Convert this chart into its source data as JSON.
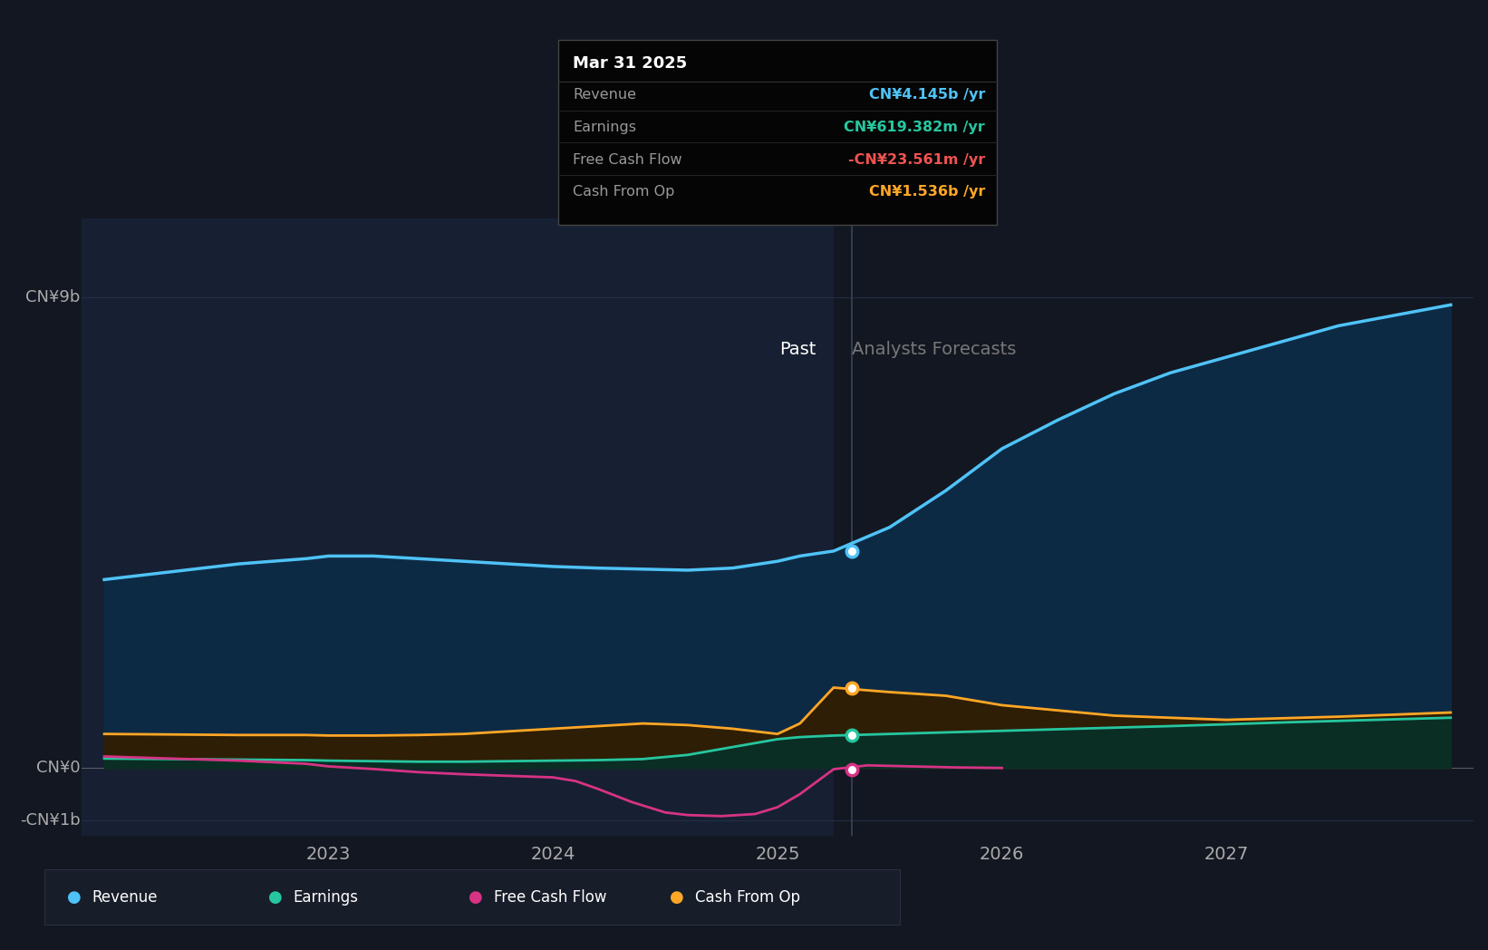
{
  "bg_color": "#131722",
  "plot_bg_color": "#131722",
  "tooltip_title": "Mar 31 2025",
  "tooltip_items": [
    {
      "label": "Revenue",
      "value": "CN¥4.145b /yr",
      "color": "#4fc3f7"
    },
    {
      "label": "Earnings",
      "value": "CN¥619.382m /yr",
      "color": "#26c6a0"
    },
    {
      "label": "Free Cash Flow",
      "value": "-CN¥23.561m /yr",
      "color": "#ef5350"
    },
    {
      "label": "Cash From Op",
      "value": "CN¥1.536b /yr",
      "color": "#ffa726"
    }
  ],
  "y_label_top": "CN¥9b",
  "y_label_zero": "CN¥0",
  "y_label_neg": "-CN¥1b",
  "past_label": "Past",
  "forecast_label": "Analysts Forecasts",
  "legend": [
    {
      "label": "Revenue",
      "color": "#4fc3f7"
    },
    {
      "label": "Earnings",
      "color": "#26c6a0"
    },
    {
      "label": "Free Cash Flow",
      "color": "#d63384"
    },
    {
      "label": "Cash From Op",
      "color": "#ffa726"
    }
  ],
  "divider_x": 2025.25,
  "highlight_x": 2025.33,
  "ylim": [
    -1300000000.0,
    10500000000.0
  ],
  "xlim": [
    2021.9,
    2028.1
  ],
  "revenue": {
    "x": [
      2022.0,
      2022.3,
      2022.6,
      2022.9,
      2023.0,
      2023.2,
      2023.4,
      2023.6,
      2023.8,
      2024.0,
      2024.2,
      2024.4,
      2024.6,
      2024.8,
      2025.0,
      2025.1,
      2025.25,
      2025.5,
      2025.75,
      2026.0,
      2026.25,
      2026.5,
      2026.75,
      2027.0,
      2027.25,
      2027.5,
      2027.75,
      2028.0
    ],
    "y": [
      3600000000.0,
      3750000000.0,
      3900000000.0,
      4000000000.0,
      4050000000.0,
      4050000000.0,
      4000000000.0,
      3950000000.0,
      3900000000.0,
      3850000000.0,
      3820000000.0,
      3800000000.0,
      3780000000.0,
      3820000000.0,
      3950000000.0,
      4050000000.0,
      4145000000.0,
      4600000000.0,
      5300000000.0,
      6100000000.0,
      6650000000.0,
      7150000000.0,
      7550000000.0,
      7850000000.0,
      8150000000.0,
      8450000000.0,
      8650000000.0,
      8850000000.0
    ],
    "color": "#4fc3f7",
    "fill_color": "#0d2a45",
    "linewidth": 2.5
  },
  "earnings": {
    "x": [
      2022.0,
      2022.3,
      2022.6,
      2022.9,
      2023.0,
      2023.2,
      2023.4,
      2023.6,
      2023.8,
      2024.0,
      2024.2,
      2024.4,
      2024.6,
      2024.8,
      2025.0,
      2025.1,
      2025.25,
      2025.5,
      2025.75,
      2026.0,
      2026.25,
      2026.5,
      2026.75,
      2027.0,
      2027.25,
      2027.5,
      2027.75,
      2028.0
    ],
    "y": [
      180000000.0,
      170000000.0,
      160000000.0,
      150000000.0,
      140000000.0,
      130000000.0,
      120000000.0,
      120000000.0,
      130000000.0,
      140000000.0,
      150000000.0,
      170000000.0,
      250000000.0,
      400000000.0,
      550000000.0,
      590000000.0,
      619382000.0,
      650000000.0,
      680000000.0,
      710000000.0,
      740000000.0,
      770000000.0,
      800000000.0,
      835000000.0,
      870000000.0,
      900000000.0,
      930000000.0,
      960000000.0
    ],
    "color": "#26c6a0",
    "fill_color": "#0a2e24",
    "linewidth": 2.0
  },
  "fcf": {
    "x": [
      2022.0,
      2022.3,
      2022.6,
      2022.9,
      2023.0,
      2023.2,
      2023.4,
      2023.6,
      2023.8,
      2024.0,
      2024.1,
      2024.2,
      2024.35,
      2024.5,
      2024.6,
      2024.75,
      2024.9,
      2025.0,
      2025.1,
      2025.25,
      2025.4,
      2025.6,
      2025.8,
      2026.0
    ],
    "y": [
      220000000.0,
      180000000.0,
      140000000.0,
      80000000.0,
      30000000.0,
      -20000000.0,
      -80000000.0,
      -120000000.0,
      -150000000.0,
      -180000000.0,
      -250000000.0,
      -400000000.0,
      -650000000.0,
      -850000000.0,
      -900000000.0,
      -920000000.0,
      -880000000.0,
      -750000000.0,
      -500000000.0,
      -23561000.0,
      50000000.0,
      30000000.0,
      10000000.0,
      0.0
    ],
    "color": "#d63384",
    "linewidth": 2.0
  },
  "cashfromop": {
    "x": [
      2022.0,
      2022.3,
      2022.6,
      2022.9,
      2023.0,
      2023.2,
      2023.4,
      2023.6,
      2023.8,
      2024.0,
      2024.2,
      2024.4,
      2024.6,
      2024.8,
      2025.0,
      2025.1,
      2025.25,
      2025.5,
      2025.75,
      2026.0,
      2026.25,
      2026.5,
      2026.75,
      2027.0,
      2027.25,
      2027.5,
      2027.75,
      2028.0
    ],
    "y": [
      650000000.0,
      640000000.0,
      630000000.0,
      630000000.0,
      620000000.0,
      620000000.0,
      630000000.0,
      650000000.0,
      700000000.0,
      750000000.0,
      800000000.0,
      850000000.0,
      820000000.0,
      750000000.0,
      650000000.0,
      850000000.0,
      1536000000.0,
      1450000000.0,
      1380000000.0,
      1200000000.0,
      1100000000.0,
      1000000000.0,
      960000000.0,
      920000000.0,
      950000000.0,
      980000000.0,
      1020000000.0,
      1060000000.0
    ],
    "color": "#ffa726",
    "fill_color": "#2e1e05",
    "linewidth": 2.0
  }
}
